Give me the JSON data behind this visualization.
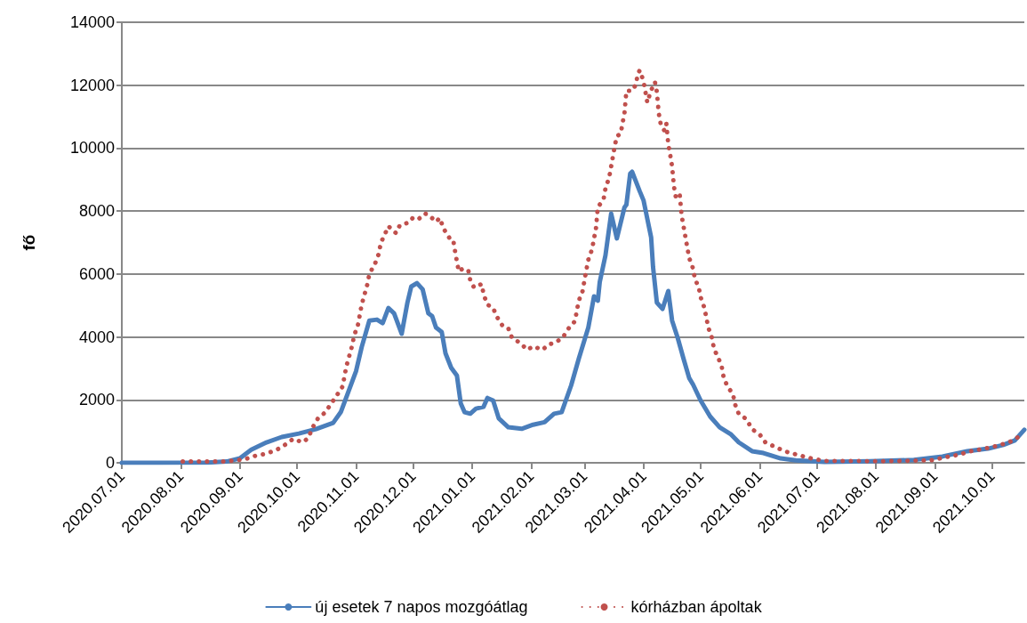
{
  "chart_data": {
    "type": "line",
    "ylabel": "fő",
    "xlim": [
      "2020-07-01",
      "2021-10-18"
    ],
    "ylim": [
      0,
      14000
    ],
    "yticks": [
      0,
      2000,
      4000,
      6000,
      8000,
      10000,
      12000,
      14000
    ],
    "xticks": [
      {
        "value": "2020-07-01",
        "label": "2020.07.01"
      },
      {
        "value": "2020-08-01",
        "label": "2020.08.01"
      },
      {
        "value": "2020-09-01",
        "label": "2020.09.01"
      },
      {
        "value": "2020-10-01",
        "label": "2020.10.01"
      },
      {
        "value": "2020-11-01",
        "label": "2020.11.01"
      },
      {
        "value": "2020-12-01",
        "label": "2020.12.01"
      },
      {
        "value": "2021-01-01",
        "label": "2021.01.01"
      },
      {
        "value": "2021-02-01",
        "label": "2021.02.01"
      },
      {
        "value": "2021-03-01",
        "label": "2021.03.01"
      },
      {
        "value": "2021-04-01",
        "label": "2021.04.01"
      },
      {
        "value": "2021-05-01",
        "label": "2021.05.01"
      },
      {
        "value": "2021-06-01",
        "label": "2021.06.01"
      },
      {
        "value": "2021-07-01",
        "label": "2021.07.01"
      },
      {
        "value": "2021-08-01",
        "label": "2021.08.01"
      },
      {
        "value": "2021-09-01",
        "label": "2021.09.01"
      },
      {
        "value": "2021-10-01",
        "label": "2021.10.01"
      }
    ],
    "grid": "y",
    "legend": "bottom",
    "marker": "none",
    "series": [
      {
        "name": "új esetek 7 napos mozgóátlag",
        "color": "#4a7ebb",
        "line_style": "solid",
        "x": [
          "2020-07-01",
          "2020-07-21",
          "2020-08-15",
          "2020-08-25",
          "2020-09-01",
          "2020-09-07",
          "2020-09-15",
          "2020-09-23",
          "2020-10-02",
          "2020-10-11",
          "2020-10-20",
          "2020-10-24",
          "2020-10-28",
          "2020-11-01",
          "2020-11-04",
          "2020-11-08",
          "2020-11-12",
          "2020-11-15",
          "2020-11-18",
          "2020-11-21",
          "2020-11-25",
          "2020-11-28",
          "2020-11-30",
          "2020-12-03",
          "2020-12-06",
          "2020-12-09",
          "2020-12-11",
          "2020-12-13",
          "2020-12-16",
          "2020-12-18",
          "2020-12-21",
          "2020-12-24",
          "2020-12-26",
          "2020-12-28",
          "2020-12-31",
          "2021-01-03",
          "2021-01-07",
          "2021-01-09",
          "2021-01-12",
          "2021-01-15",
          "2021-01-20",
          "2021-01-27",
          "2021-02-02",
          "2021-02-08",
          "2021-02-13",
          "2021-02-17",
          "2021-02-22",
          "2021-02-26",
          "2021-03-03",
          "2021-03-06",
          "2021-03-08",
          "2021-03-09",
          "2021-03-12",
          "2021-03-15",
          "2021-03-18",
          "2021-03-22",
          "2021-03-23",
          "2021-03-25",
          "2021-03-26",
          "2021-03-30",
          "2021-04-01",
          "2021-04-05",
          "2021-04-06",
          "2021-04-08",
          "2021-04-11",
          "2021-04-14",
          "2021-04-16",
          "2021-04-19",
          "2021-04-22",
          "2021-04-25",
          "2021-04-27",
          "2021-05-01",
          "2021-05-06",
          "2021-05-11",
          "2021-05-17",
          "2021-05-21",
          "2021-05-28",
          "2021-06-03",
          "2021-06-12",
          "2021-06-20",
          "2021-07-05",
          "2021-07-29",
          "2021-08-21",
          "2021-09-05",
          "2021-09-18",
          "2021-09-29",
          "2021-10-07",
          "2021-10-13",
          "2021-10-18"
        ],
        "values": [
          0,
          0,
          10,
          40,
          140,
          420,
          650,
          820,
          930,
          1070,
          1270,
          1610,
          2260,
          2910,
          3680,
          4520,
          4550,
          4440,
          4920,
          4750,
          4100,
          5090,
          5600,
          5710,
          5510,
          4750,
          4660,
          4300,
          4160,
          3480,
          3020,
          2770,
          1890,
          1610,
          1560,
          1720,
          1780,
          2060,
          1980,
          1410,
          1130,
          1080,
          1210,
          1290,
          1560,
          1610,
          2460,
          3310,
          4300,
          5290,
          5150,
          5740,
          6590,
          7920,
          7130,
          8120,
          8200,
          9190,
          9250,
          8630,
          8340,
          7160,
          6220,
          5090,
          4890,
          5460,
          4520,
          3960,
          3310,
          2690,
          2490,
          1980,
          1470,
          1130,
          900,
          650,
          370,
          310,
          140,
          80,
          30,
          50,
          90,
          200,
          370,
          450,
          570,
          710,
          1050
        ]
      },
      {
        "name": "kórházban ápoltak",
        "color": "#c0504d",
        "line_style": "dotted",
        "x": [
          "2020-08-02",
          "2020-08-24",
          "2020-08-30",
          "2020-09-04",
          "2020-09-09",
          "2020-09-14",
          "2020-09-20",
          "2020-09-24",
          "2020-09-29",
          "2020-10-04",
          "2020-10-07",
          "2020-10-09",
          "2020-10-12",
          "2020-10-16",
          "2020-10-19",
          "2020-10-22",
          "2020-10-25",
          "2020-10-26",
          "2020-10-27",
          "2020-10-30",
          "2020-10-31",
          "2020-11-02",
          "2020-11-04",
          "2020-11-07",
          "2020-11-08",
          "2020-11-11",
          "2020-11-13",
          "2020-11-14",
          "2020-11-16",
          "2020-11-18",
          "2020-11-22",
          "2020-11-24",
          "2020-11-29",
          "2020-12-01",
          "2020-12-04",
          "2020-12-07",
          "2020-12-09",
          "2020-12-13",
          "2020-12-15",
          "2020-12-17",
          "2020-12-20",
          "2020-12-22",
          "2020-12-23",
          "2020-12-24",
          "2020-12-25",
          "2020-12-27",
          "2020-12-30",
          "2020-12-31",
          "2021-01-02",
          "2021-01-06",
          "2021-01-07",
          "2021-01-09",
          "2021-01-12",
          "2021-01-14",
          "2021-01-17",
          "2021-01-20",
          "2021-01-22",
          "2021-01-26",
          "2021-01-30",
          "2021-02-02",
          "2021-02-07",
          "2021-02-10",
          "2021-02-14",
          "2021-02-18",
          "2021-02-21",
          "2021-02-24",
          "2021-02-25",
          "2021-02-26",
          "2021-02-28",
          "2021-03-01",
          "2021-03-02",
          "2021-03-03",
          "2021-03-05",
          "2021-03-06",
          "2021-03-07",
          "2021-03-08",
          "2021-03-11",
          "2021-03-12",
          "2021-03-14",
          "2021-03-15",
          "2021-03-16",
          "2021-03-17",
          "2021-03-18",
          "2021-03-20",
          "2021-03-21",
          "2021-03-22",
          "2021-03-23",
          "2021-03-26",
          "2021-03-28",
          "2021-03-29",
          "2021-03-30",
          "2021-04-01",
          "2021-04-02",
          "2021-04-03",
          "2021-04-04",
          "2021-04-06",
          "2021-04-07",
          "2021-04-08",
          "2021-04-09",
          "2021-04-10",
          "2021-04-12",
          "2021-04-13",
          "2021-04-14",
          "2021-04-15",
          "2021-04-16",
          "2021-04-17",
          "2021-04-18",
          "2021-04-20",
          "2021-04-21",
          "2021-04-22",
          "2021-04-23",
          "2021-04-24",
          "2021-04-25",
          "2021-04-26",
          "2021-04-27",
          "2021-04-28",
          "2021-04-30",
          "2021-05-01",
          "2021-05-03",
          "2021-05-04",
          "2021-05-05",
          "2021-05-07",
          "2021-05-08",
          "2021-05-10",
          "2021-05-12",
          "2021-05-13",
          "2021-05-15",
          "2021-05-18",
          "2021-05-19",
          "2021-05-21",
          "2021-05-25",
          "2021-05-28",
          "2021-06-01",
          "2021-06-04",
          "2021-06-09",
          "2021-06-14",
          "2021-06-21",
          "2021-06-28",
          "2021-07-05",
          "2021-08-05",
          "2021-08-30",
          "2021-09-06",
          "2021-09-13",
          "2021-09-20",
          "2021-09-27",
          "2021-10-04",
          "2021-10-11",
          "2021-10-17"
        ],
        "values": [
          40,
          40,
          80,
          120,
          220,
          280,
          400,
          540,
          760,
          650,
          790,
          1100,
          1410,
          1610,
          1890,
          2150,
          2430,
          2770,
          3080,
          3730,
          4040,
          4380,
          5030,
          5680,
          6000,
          6330,
          6650,
          6990,
          7240,
          7520,
          7300,
          7550,
          7640,
          7800,
          7750,
          7920,
          7890,
          7660,
          7780,
          7440,
          7150,
          7100,
          6730,
          6390,
          6080,
          6170,
          6110,
          5800,
          5570,
          5680,
          5350,
          5030,
          4920,
          4640,
          4350,
          4270,
          3960,
          3820,
          3590,
          3700,
          3590,
          3760,
          3820,
          4020,
          4300,
          4500,
          4840,
          5150,
          5460,
          5800,
          6140,
          6450,
          6790,
          7130,
          7440,
          8120,
          8370,
          8710,
          9080,
          9420,
          9760,
          10100,
          10380,
          10460,
          10800,
          11110,
          11820,
          11820,
          12020,
          12360,
          12470,
          12130,
          11790,
          11450,
          11650,
          11990,
          12100,
          11790,
          11110,
          10770,
          10550,
          10770,
          10120,
          9790,
          9420,
          8770,
          8430,
          8540,
          7860,
          7520,
          7180,
          6840,
          6500,
          6360,
          6170,
          5850,
          5570,
          5260,
          4920,
          4610,
          4300,
          3960,
          3620,
          3370,
          3080,
          2740,
          2430,
          2180,
          1870,
          1560,
          1390,
          1070,
          900,
          650,
          510,
          370,
          250,
          140,
          60,
          50,
          80,
          170,
          250,
          370,
          450,
          540,
          680,
          900
        ]
      }
    ]
  }
}
